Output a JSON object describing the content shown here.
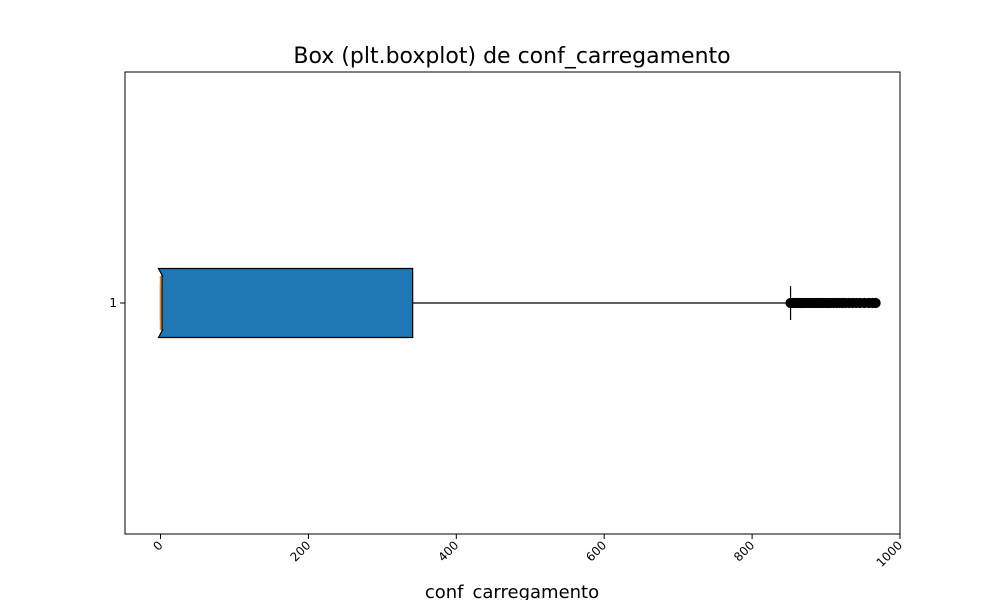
{
  "chart_data": {
    "type": "boxplot",
    "orientation": "horizontal",
    "notched": true,
    "title": "Box (plt.boxplot) de conf_carregamento",
    "xlabel": "conf_carregamento",
    "ylabel": "",
    "xlim": [
      -48,
      1000
    ],
    "x_ticks": [
      0,
      200,
      400,
      600,
      800,
      1000
    ],
    "x_tick_labels": [
      "0",
      "200",
      "400",
      "600",
      "800",
      "1000"
    ],
    "x_tick_rotation": 45,
    "y_tick_labels": [
      "1"
    ],
    "grid": false,
    "box": {
      "category": "1",
      "whislo": 0,
      "q1": 0,
      "median": 0,
      "q3": 341,
      "whishi": 852,
      "notch_low": 0,
      "notch_high": 2,
      "fliers_range": [
        852,
        967
      ],
      "fliers": [
        852,
        854,
        856,
        858,
        860,
        862,
        864,
        866,
        868,
        870,
        873,
        876,
        879,
        882,
        885,
        888,
        891,
        894,
        897,
        900,
        903,
        906,
        910,
        914,
        918,
        922,
        926,
        931,
        936,
        941,
        946,
        952,
        958,
        963,
        967
      ]
    },
    "colors": {
      "box_fill": "#1f77b4",
      "median_line": "#ff7f0e",
      "edges": "#000000",
      "flier": "#000000"
    }
  }
}
